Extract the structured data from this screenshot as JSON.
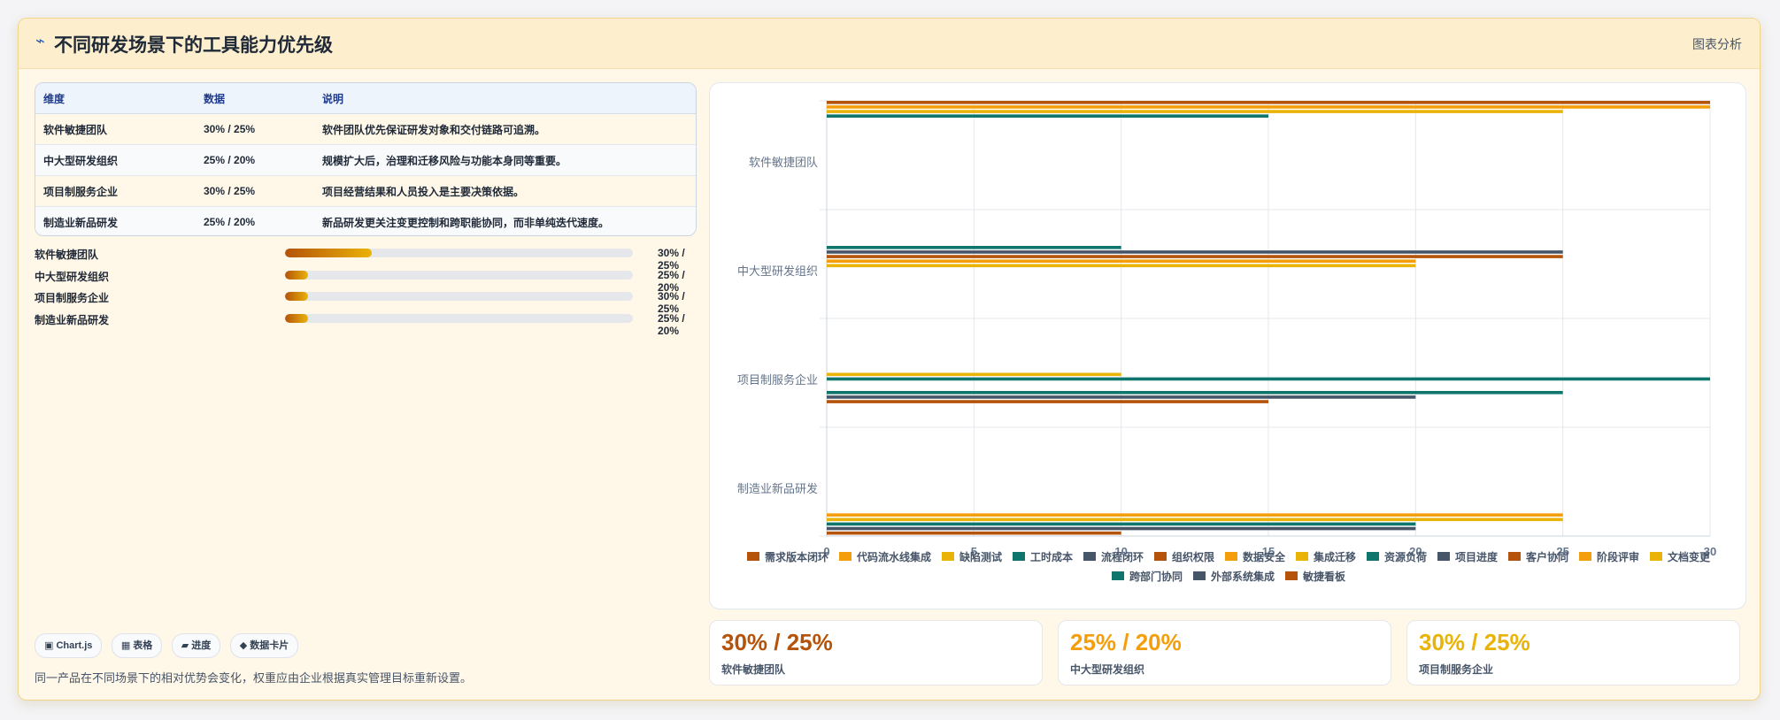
{
  "header": {
    "icon": "lightning-icon",
    "title": "不同研发场景下的工具能力优先级",
    "link": "图表分析"
  },
  "table": {
    "headers": [
      "维度",
      "数据",
      "说明"
    ],
    "rows": [
      [
        "软件敏捷团队",
        "30% / 25%",
        "软件团队优先保证研发对象和交付链路可追溯。"
      ],
      [
        "中大型研发组织",
        "25% / 20%",
        "规模扩大后，治理和迁移风险与功能本身同等重要。"
      ],
      [
        "项目制服务企业",
        "30% / 25%",
        "项目经营结果和人员投入是主要决策依据。"
      ],
      [
        "制造业新品研发",
        "25% / 20%",
        "新品研发更关注变更控制和跨职能协同，而非单纯迭代速度。"
      ]
    ]
  },
  "progress": [
    {
      "label": "软件敏捷团队",
      "value": "30% / 25%",
      "fill": 0.25
    },
    {
      "label": "中大型研发组织",
      "value": "25% / 20%",
      "fill": 0.065
    },
    {
      "label": "项目制服务企业",
      "value": "30% / 25%",
      "fill": 0.065
    },
    {
      "label": "制造业新品研发",
      "value": "25% / 20%",
      "fill": 0.065
    }
  ],
  "tags": [
    "▣ Chart.js",
    "▦ 表格",
    "▰ 进度",
    "◆ 数据卡片"
  ],
  "footnote": "同一产品在不同场景下的相对优势会变化，权重应由企业根据真实管理目标重新设置。",
  "kpis": [
    {
      "value": "30% / 25%",
      "label": "软件敏捷团队",
      "color": "#b45309"
    },
    {
      "value": "25% / 20%",
      "label": "中大型研发组织",
      "color": "#f59e0b"
    },
    {
      "value": "30% / 25%",
      "label": "项目制服务企业",
      "color": "#eab308"
    }
  ],
  "chart_data": {
    "type": "bar",
    "orientation": "horizontal",
    "categories": [
      "软件敏捷团队",
      "中大型研发组织",
      "项目制服务企业",
      "制造业新品研发"
    ],
    "xlim": [
      0,
      30
    ],
    "xticks": [
      0,
      5,
      10,
      15,
      20,
      25,
      30
    ],
    "grid": true,
    "legend_position": "bottom",
    "series": [
      {
        "name": "需求版本闭环",
        "color": "#b45309",
        "values": [
          30,
          null,
          null,
          null
        ]
      },
      {
        "name": "代码流水线集成",
        "color": "#f59e0b",
        "values": [
          30,
          null,
          null,
          null
        ]
      },
      {
        "name": "缺陷测试",
        "color": "#eab308",
        "values": [
          25,
          null,
          null,
          null
        ]
      },
      {
        "name": "工时成本",
        "color": "#0f766e",
        "values": [
          15,
          null,
          null,
          null
        ]
      },
      {
        "name": "流程闭环",
        "color": "#475569",
        "values": [
          null,
          null,
          null,
          null
        ]
      },
      {
        "name": "组织权限",
        "color": "#b45309",
        "values": [
          null,
          null,
          null,
          null
        ]
      },
      {
        "name": "数据安全",
        "color": "#f59e0b",
        "values": [
          null,
          null,
          null,
          null
        ]
      },
      {
        "name": "集成迁移",
        "color": "#eab308",
        "values": [
          null,
          null,
          null,
          null
        ]
      },
      {
        "name": "资源负荷",
        "color": "#0f766e",
        "values": [
          null,
          10,
          null,
          null
        ]
      },
      {
        "name": "项目进度",
        "color": "#475569",
        "values": [
          null,
          25,
          null,
          null
        ]
      },
      {
        "name": "客户协同",
        "color": "#b45309",
        "values": [
          null,
          25,
          null,
          null
        ]
      },
      {
        "name": "阶段评审",
        "color": "#f59e0b",
        "values": [
          null,
          20,
          null,
          null
        ]
      },
      {
        "name": "文档变更",
        "color": "#eab308",
        "values": [
          null,
          20,
          10,
          null
        ]
      },
      {
        "name": "跨部门协同",
        "color": "#0f766e",
        "values": [
          null,
          null,
          30,
          null
        ]
      },
      {
        "name": "外部系统集成",
        "color": "#475569",
        "values": [
          null,
          null,
          null,
          null
        ]
      },
      {
        "name": "敏捷看板",
        "color": "#b45309",
        "values": [
          null,
          null,
          null,
          null
        ]
      },
      {
        "name": "工时成本_",
        "color": "#0f766e",
        "values": [
          null,
          null,
          25,
          null
        ]
      },
      {
        "name": "流程闭环_",
        "color": "#475569",
        "values": [
          null,
          null,
          20,
          null
        ]
      },
      {
        "name": "组织权限_",
        "color": "#b45309",
        "values": [
          null,
          null,
          15,
          null
        ]
      },
      {
        "name": "数据安全_",
        "color": "#f59e0b",
        "values": [
          null,
          null,
          null,
          25
        ]
      },
      {
        "name": "集成迁移_",
        "color": "#eab308",
        "values": [
          null,
          null,
          null,
          25
        ]
      },
      {
        "name": "资源负荷_",
        "color": "#0f766e",
        "values": [
          null,
          null,
          null,
          20
        ]
      },
      {
        "name": "项目进度_",
        "color": "#475569",
        "values": [
          null,
          null,
          null,
          20
        ]
      },
      {
        "name": "客户协同_",
        "color": "#b45309",
        "values": [
          null,
          null,
          null,
          10
        ]
      }
    ],
    "legend": [
      {
        "name": "需求版本闭环",
        "color": "#b45309"
      },
      {
        "name": "代码流水线集成",
        "color": "#f59e0b"
      },
      {
        "name": "缺陷测试",
        "color": "#eab308"
      },
      {
        "name": "工时成本",
        "color": "#0f766e"
      },
      {
        "name": "流程闭环",
        "color": "#475569"
      },
      {
        "name": "组织权限",
        "color": "#b45309"
      },
      {
        "name": "数据安全",
        "color": "#f59e0b"
      },
      {
        "name": "集成迁移",
        "color": "#eab308"
      },
      {
        "name": "资源负荷",
        "color": "#0f766e"
      },
      {
        "name": "项目进度",
        "color": "#475569"
      },
      {
        "name": "客户协同",
        "color": "#b45309"
      },
      {
        "name": "阶段评审",
        "color": "#f59e0b"
      },
      {
        "name": "文档变更",
        "color": "#eab308"
      },
      {
        "name": "跨部门协同",
        "color": "#0f766e"
      },
      {
        "name": "外部系统集成",
        "color": "#475569"
      },
      {
        "name": "敏捷看板",
        "color": "#b45309"
      }
    ]
  }
}
